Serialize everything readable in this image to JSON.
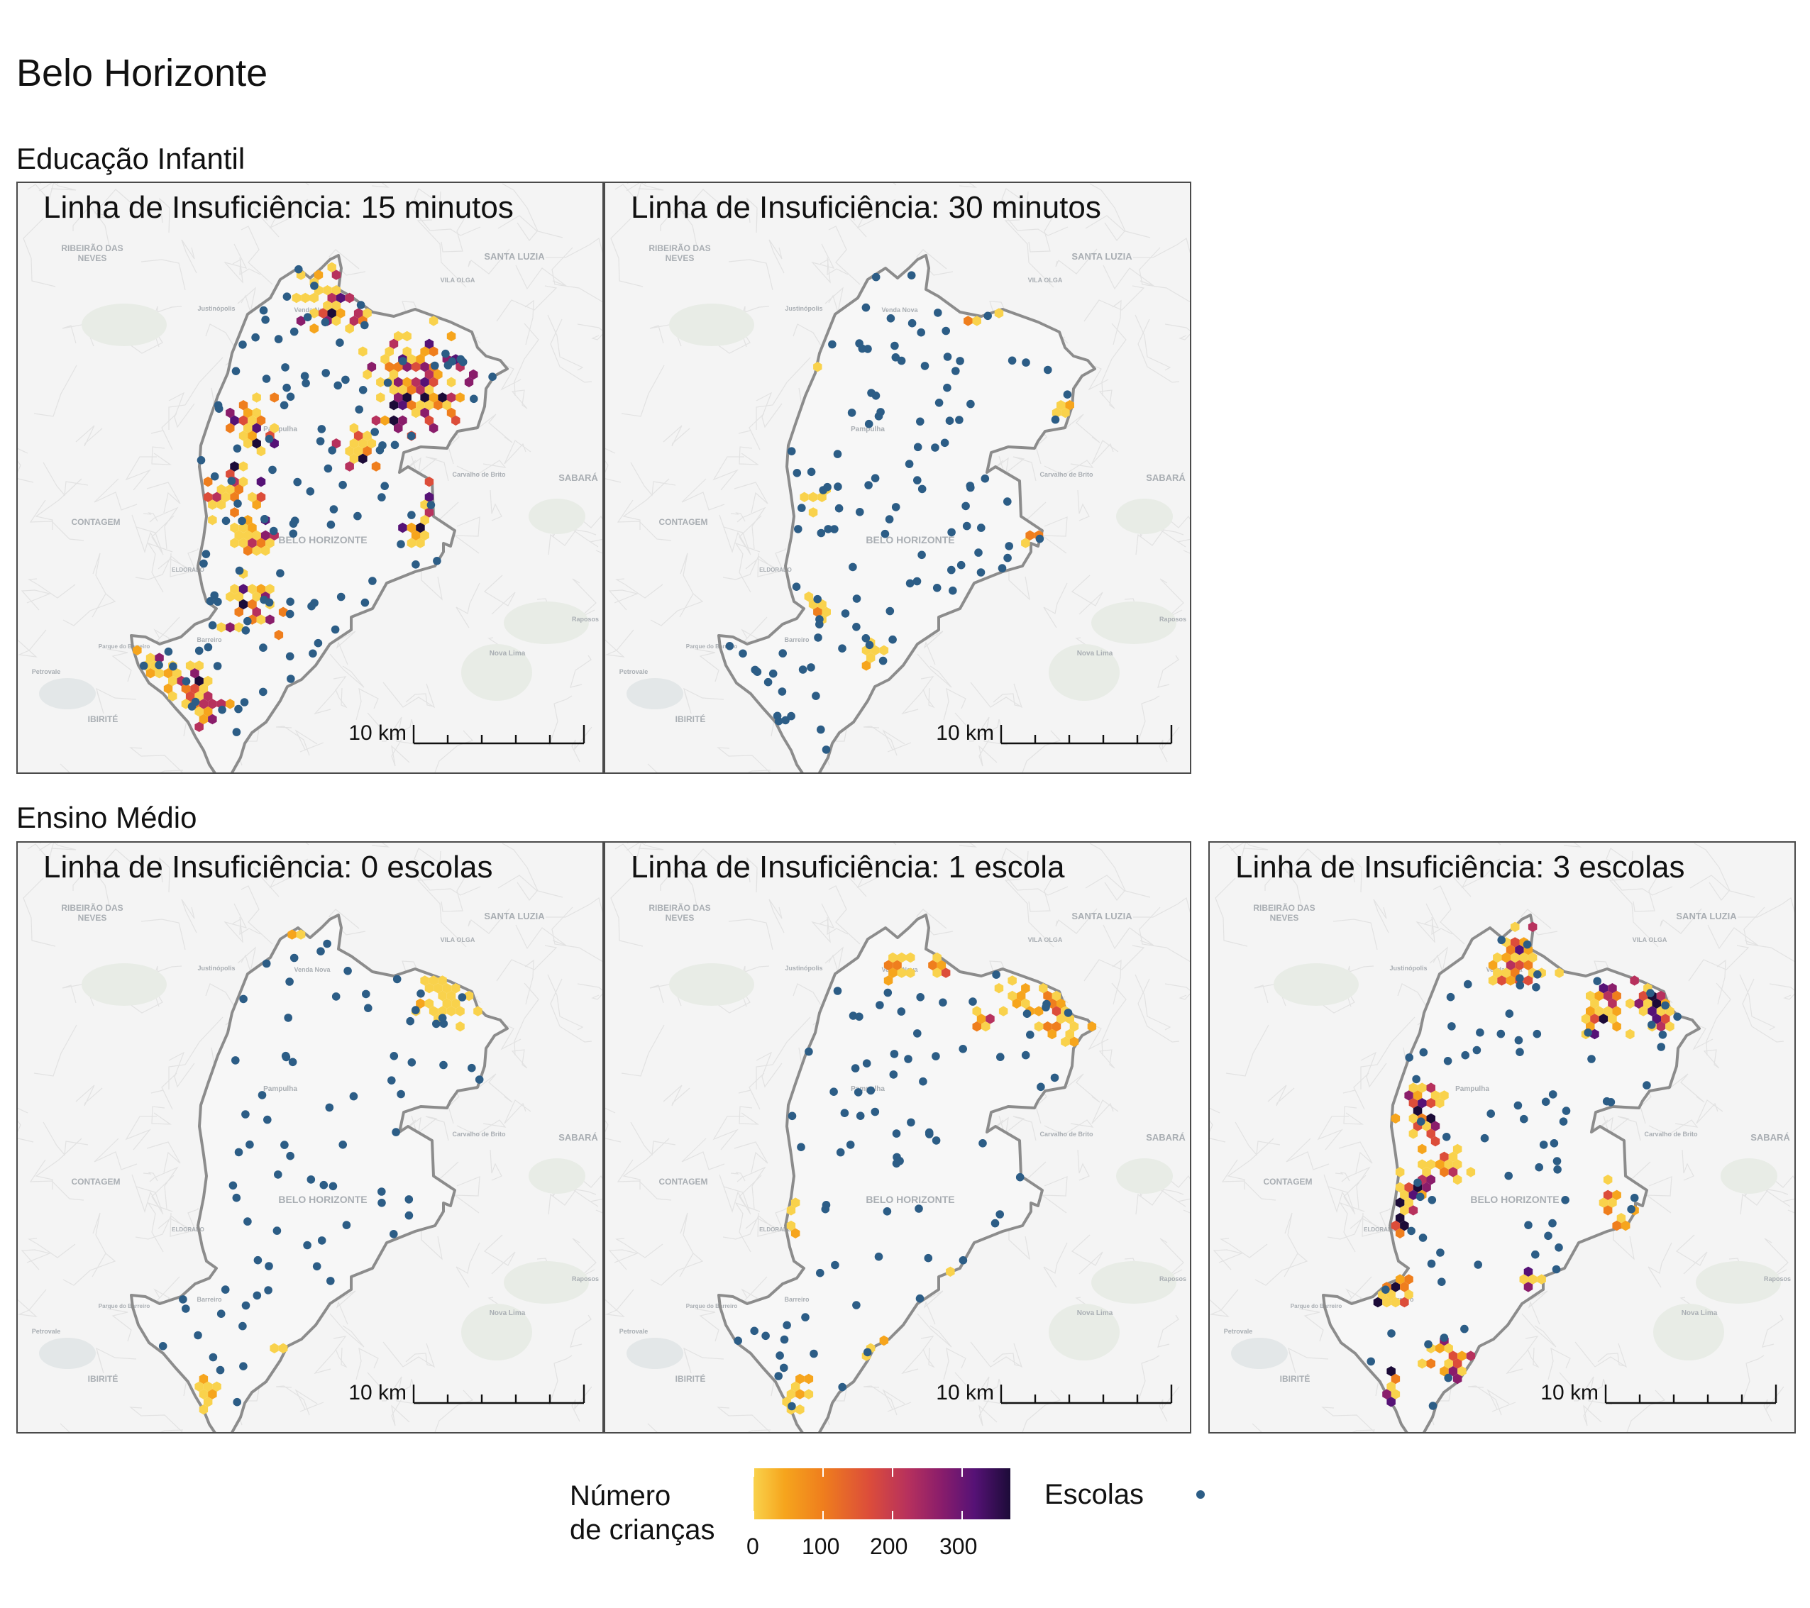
{
  "title": "Belo Horizonte",
  "sections": [
    {
      "label": "Educação Infantil",
      "panels": [
        {
          "label": "Linha de Insuficiência: 15 minutos",
          "level": 0.85
        },
        {
          "label": "Linha de Insuficiência: 30 minutos",
          "level": 0.35
        }
      ]
    },
    {
      "label": "Ensino Médio",
      "panels": [
        {
          "label": "Linha de Insuficiência: 0 escolas",
          "level": 0.15
        },
        {
          "label": "Linha de Insuficiência: 1 escola",
          "level": 0.4
        },
        {
          "label": "Linha de Insuficiência: 3 escolas",
          "level": 0.9
        }
      ]
    }
  ],
  "basemap_labels": {
    "ribeirao": [
      "RIBEIRÃO DAS",
      "NEVES"
    ],
    "pampulha": "Pampulha",
    "contagem": "CONTAGEM",
    "belo_horizonte": "BELO HORIZONTE",
    "sabara": "SABARÁ",
    "santa_luzia": "SANTA LUZIA",
    "ibirite": "IBIRITÉ",
    "nova_lima": "Nova Lima",
    "justinopolis": "Justinópolis",
    "venda_nova": "Venda Nova",
    "barreiro": "Barreiro",
    "eldorado": "ELDORADO",
    "petrovale": "Petrovale",
    "raposos": "Raposos",
    "carvalho": "Carvalho de Brito",
    "vila_olga": "VILA OLGA",
    "paraiso": "Parque do Barreiro"
  },
  "scale_bar": {
    "label": "10 km"
  },
  "legend": {
    "fill_title": [
      "Número",
      "de crianças"
    ],
    "fill_ticks": [
      "0",
      "100",
      "200",
      "300"
    ],
    "fill_range": [
      0,
      370
    ],
    "points_title": "Escolas"
  },
  "colors": {
    "school": "#2c5d86",
    "boundary": "#8c8c8c",
    "basemap": "#f4f4f4",
    "palette": [
      "#f9d24c",
      "#f6a51d",
      "#ef7e1d",
      "#dc4d3a",
      "#b7315d",
      "#8a1d6b",
      "#561276",
      "#1c0b38"
    ]
  }
}
